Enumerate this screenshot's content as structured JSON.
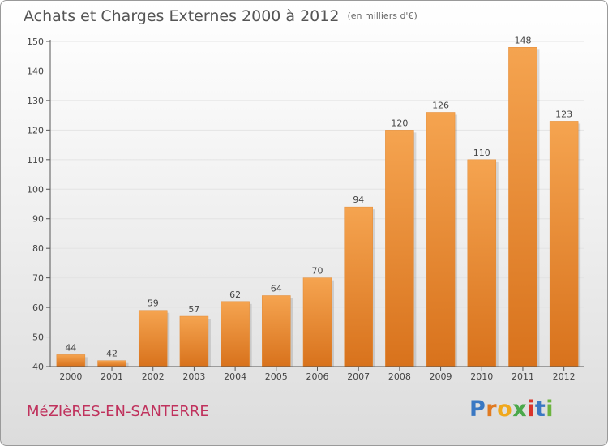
{
  "title": "Achats et Charges Externes 2000 à 2012",
  "unit_label": "(en milliers d'€)",
  "commune": "MéZIèRES-EN-SANTERRE",
  "brand": {
    "letters": [
      "P",
      "r",
      "o",
      "x",
      "i",
      "t",
      "i"
    ],
    "colors": [
      "#3a78c3",
      "#e07a22",
      "#f0a81c",
      "#4aa84a",
      "#d9342b",
      "#3a78c3",
      "#6cb43f"
    ]
  },
  "colors": {
    "bar_top": "#f5a450",
    "bar_bottom": "#d8721c",
    "axis": "#555555",
    "grid": "#e3e3e3"
  },
  "chart_data": {
    "type": "bar",
    "categories": [
      "2000",
      "2001",
      "2002",
      "2003",
      "2004",
      "2005",
      "2006",
      "2007",
      "2008",
      "2009",
      "2010",
      "2011",
      "2012"
    ],
    "values": [
      44,
      42,
      59,
      57,
      62,
      64,
      70,
      94,
      120,
      126,
      110,
      148,
      123
    ],
    "ylim": [
      40,
      150
    ],
    "yticks": [
      40,
      50,
      60,
      70,
      80,
      90,
      100,
      110,
      120,
      130,
      140,
      150
    ],
    "title": "Achats et Charges Externes 2000 à 2012",
    "xlabel": "",
    "ylabel": ""
  }
}
